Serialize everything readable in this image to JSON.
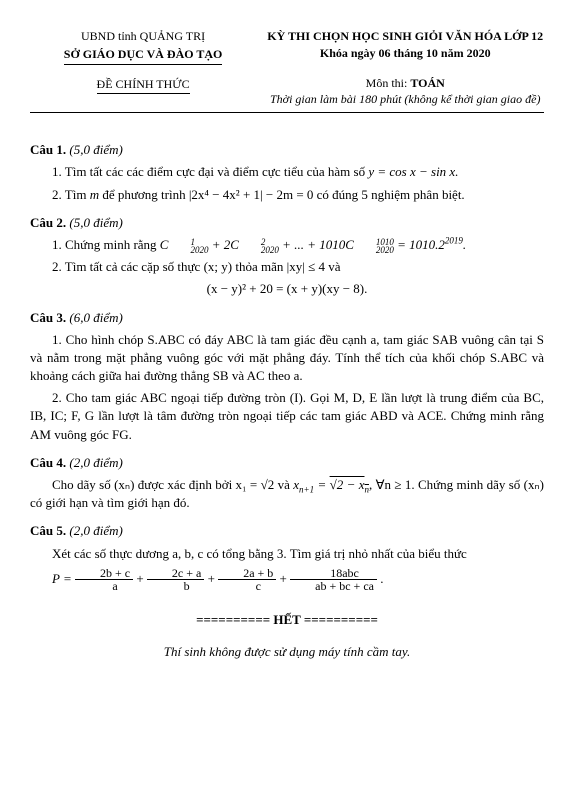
{
  "header": {
    "org_line1": "UBND tỉnh QUẢNG TRỊ",
    "org_line2": "SỞ GIÁO DỤC VÀ ĐÀO TẠO",
    "exam_title": "KỲ THI CHỌN HỌC SINH GIỎI VĂN HÓA LỚP 12",
    "exam_date": "Khóa ngày 06 tháng 10 năm 2020",
    "official": "ĐỀ CHÍNH THỨC",
    "subject_label": "Môn thi: ",
    "subject": "TOÁN",
    "time": "Thời gian làm bài 180 phút (không kể thời gian giao đề)"
  },
  "q1": {
    "title": "Câu 1.",
    "pts": "(5,0 điểm)",
    "p1a": "1. Tìm tất các các điểm cực đại và điểm cực tiểu của hàm số ",
    "p1b": "y = cos x − sin x.",
    "p2a": "2. Tìm ",
    "p2b": "m",
    "p2c": " để phương trình ",
    "p2d": "|2x⁴ − 4x² + 1| − 2m = 0",
    "p2e": " có đúng 5 nghiệm phân biệt."
  },
  "q2": {
    "title": "Câu 2.",
    "pts": "(5,0 điểm)",
    "p1a": "1. Chứng minh rằng ",
    "p2a": "2. Tìm tất cả các cặp số thực ",
    "p2b": "(x; y)",
    "p2c": " thỏa mãn ",
    "p2d": "|xy| ≤ 4",
    "p2e": " và",
    "eq": "(x − y)² + 20 = (x + y)(xy − 8)."
  },
  "q3": {
    "title": "Câu 3.",
    "pts": "(6,0 điểm)",
    "p1": "1. Cho hình chóp S.ABC có đáy ABC là tam giác đều cạnh a, tam giác SAB vuông cân tại S và nằm trong mặt phẳng vuông góc với mặt phẳng đáy. Tính thể tích của khối chóp S.ABC và khoảng cách giữa hai đường thẳng SB và AC theo a.",
    "p2": "2. Cho tam giác ABC ngoại tiếp đường tròn (I). Gọi M, D, E lần lượt là trung điểm của BC, IB, IC; F, G lần lượt là tâm đường tròn ngoại tiếp các tam giác ABD và ACE. Chứng minh rằng AM vuông góc FG."
  },
  "q4": {
    "title": "Câu 4.",
    "pts": "(2,0 điểm)",
    "p1a": "Cho dãy số ",
    "p1b": "(xₙ)",
    "p1c": " được xác định bởi ",
    "p1d": "x₁ = √2",
    "p1e": " và ",
    "p1g": ", ∀n ≥ 1.",
    "p1h": " Chứng minh dãy số ",
    "p1i": "(xₙ)",
    "p1j": " có giới hạn và tìm giới hạn đó."
  },
  "q5": {
    "title": "Câu 5.",
    "pts": "(2,0 điểm)",
    "p1": "Xét các số thực dương a, b, c có tổng bằng 3. Tìm giá trị nhỏ nhất của biểu thức",
    "Plabel": "P = ",
    "f1n": "2b + c",
    "f1d": "a",
    "f2n": "2c + a",
    "f2d": "b",
    "f3n": "2a + b",
    "f3d": "c",
    "f4n": "18abc",
    "f4d": "ab + bc + ca",
    "dot": "."
  },
  "end": "========== HẾT ==========",
  "footer": "Thí sinh không được sử dụng máy tính cầm tay."
}
